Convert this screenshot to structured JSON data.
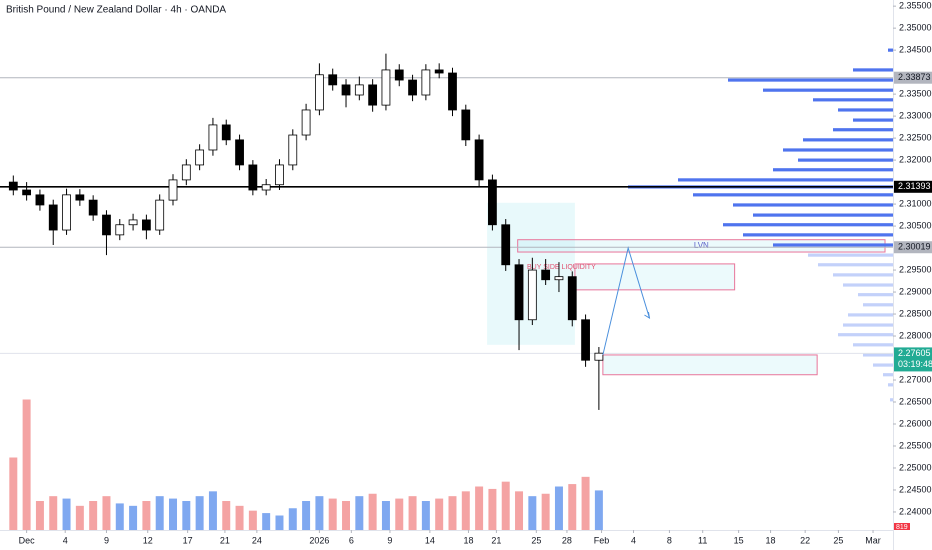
{
  "chart_data": {
    "type": "candlestick",
    "title": "British Pound / New Zealand Dollar · 4h · OANDA",
    "xlim": [
      -2,
      65.1
    ],
    "ylim": [
      2.2359,
      2.3564
    ],
    "vlim": [
      0,
      3000
    ],
    "up_color": "#ffffff",
    "down_color": "#000000",
    "up_volume_color": "#7fa8f0",
    "down_volume_color": "#f4a3a3",
    "xticks": [
      {
        "value": 0,
        "label": "Dec"
      },
      {
        "value": 2.9,
        "label": "4"
      },
      {
        "value": 6,
        "label": "9"
      },
      {
        "value": 9.1,
        "label": "12"
      },
      {
        "value": 12.1,
        "label": "17"
      },
      {
        "value": 14.9,
        "label": "21"
      },
      {
        "value": 17.3,
        "label": "24"
      },
      {
        "value": 22,
        "label": "2026"
      },
      {
        "value": 24.4,
        "label": "6"
      },
      {
        "value": 27.3,
        "label": "9"
      },
      {
        "value": 30.3,
        "label": "14"
      },
      {
        "value": 33.2,
        "label": "18"
      },
      {
        "value": 35.3,
        "label": "21"
      },
      {
        "value": 38.3,
        "label": "25"
      },
      {
        "value": 40.6,
        "label": "28"
      },
      {
        "value": 43.2,
        "label": "Feb"
      },
      {
        "value": 45.6,
        "label": "4"
      },
      {
        "value": 48.3,
        "label": "8"
      },
      {
        "value": 50.8,
        "label": "11"
      },
      {
        "value": 53.5,
        "label": "15"
      },
      {
        "value": 55.9,
        "label": "18"
      },
      {
        "value": 58.5,
        "label": "22"
      },
      {
        "value": 61,
        "label": "25"
      },
      {
        "value": 63.6,
        "label": "Mar"
      }
    ],
    "yticks": [
      {
        "value": 2.355,
        "label": "2.35500"
      },
      {
        "value": 2.35,
        "label": "2.35000"
      },
      {
        "value": 2.345,
        "label": "2.34500"
      },
      {
        "value": 2.335,
        "label": "2.33500"
      },
      {
        "value": 2.33,
        "label": "2.33000"
      },
      {
        "value": 2.325,
        "label": "2.32500"
      },
      {
        "value": 2.32,
        "label": "2.32000"
      },
      {
        "value": 2.31,
        "label": "2.31000"
      },
      {
        "value": 2.305,
        "label": "2.30500"
      },
      {
        "value": 2.295,
        "label": "2.29500"
      },
      {
        "value": 2.29,
        "label": "2.29000"
      },
      {
        "value": 2.285,
        "label": "2.28500"
      },
      {
        "value": 2.28,
        "label": "2.28000"
      },
      {
        "value": 2.27,
        "label": "2.27000"
      },
      {
        "value": 2.265,
        "label": "2.26500"
      },
      {
        "value": 2.26,
        "label": "2.26000"
      },
      {
        "value": 2.255,
        "label": "2.25500"
      },
      {
        "value": 2.25,
        "label": "2.25000"
      },
      {
        "value": 2.245,
        "label": "2.24500"
      },
      {
        "value": 2.24,
        "label": "2.24000"
      }
    ],
    "x": [
      -1,
      0,
      1,
      2,
      3,
      4,
      5,
      6,
      7,
      8,
      9,
      10,
      11,
      12,
      13,
      14,
      15,
      16,
      17,
      18,
      19,
      20,
      21,
      22,
      23,
      24,
      25,
      26,
      27,
      28,
      29,
      30,
      31,
      32,
      33,
      34,
      35,
      36,
      37,
      38,
      39,
      40,
      41,
      42,
      43
    ],
    "open": [
      2.315,
      2.3132,
      2.3121,
      2.3098,
      2.3041,
      2.3121,
      2.3109,
      2.3075,
      2.303,
      2.3053,
      2.3064,
      2.3041,
      2.3109,
      2.3155,
      2.3189,
      2.3223,
      2.328,
      2.3246,
      2.3189,
      2.3132,
      2.3144,
      2.3189,
      2.3257,
      2.3314,
      2.3394,
      2.3371,
      2.3348,
      2.3371,
      2.3325,
      2.3405,
      2.3382,
      2.3348,
      2.3405,
      2.3398,
      2.3314,
      2.3246,
      2.3155,
      2.3053,
      2.2962,
      2.2837,
      2.295,
      2.2928,
      2.2935,
      2.2837,
      2.2745
    ],
    "high": [
      2.3165,
      2.315,
      2.3133,
      2.311,
      2.3135,
      2.3134,
      2.312,
      2.3086,
      2.3066,
      2.3078,
      2.3076,
      2.3122,
      2.3168,
      2.3202,
      2.3236,
      2.3296,
      2.3292,
      2.3258,
      2.32,
      2.3157,
      2.3202,
      2.327,
      2.3328,
      2.342,
      2.3408,
      2.3384,
      2.339,
      2.3384,
      2.3442,
      2.3418,
      2.3394,
      2.3418,
      2.342,
      2.341,
      2.3326,
      2.3258,
      2.3167,
      2.3066,
      2.2975,
      2.2978,
      2.2975,
      2.2968,
      2.2947,
      2.2849,
      2.2775
    ],
    "low": [
      2.312,
      2.3108,
      2.3085,
      2.3007,
      2.303,
      2.3096,
      2.3062,
      2.2984,
      2.3018,
      2.304,
      2.302,
      2.303,
      2.3097,
      2.3143,
      2.3177,
      2.321,
      2.3234,
      2.3177,
      2.312,
      2.312,
      2.3132,
      2.3177,
      2.3245,
      2.3302,
      2.3358,
      2.332,
      2.3336,
      2.331,
      2.3313,
      2.3368,
      2.3334,
      2.3336,
      2.3386,
      2.33,
      2.3232,
      2.314,
      2.304,
      2.2948,
      2.2768,
      2.2825,
      2.2916,
      2.29,
      2.2822,
      2.273,
      2.2632
    ],
    "close": [
      2.3132,
      2.3121,
      2.3098,
      2.3041,
      2.3121,
      2.3109,
      2.3075,
      2.303,
      2.3053,
      2.3064,
      2.3041,
      2.3109,
      2.3155,
      2.3189,
      2.3223,
      2.328,
      2.3246,
      2.3189,
      2.3132,
      2.3144,
      2.3189,
      2.3257,
      2.3314,
      2.3394,
      2.3371,
      2.3348,
      2.3371,
      2.3325,
      2.3405,
      2.3382,
      2.3348,
      2.3405,
      2.3398,
      2.3314,
      2.3246,
      2.3155,
      2.3053,
      2.2962,
      2.2837,
      2.295,
      2.2928,
      2.2935,
      2.2837,
      2.2745,
      2.2761
    ],
    "volume": [
      1500,
      2700,
      600,
      700,
      650,
      500,
      600,
      700,
      550,
      500,
      600,
      700,
      650,
      600,
      700,
      800,
      600,
      500,
      400,
      350,
      300,
      450,
      600,
      700,
      650,
      600,
      700,
      750,
      600,
      650,
      700,
      600,
      650,
      700,
      800,
      900,
      850,
      1000,
      800,
      700,
      750,
      900,
      950,
      1100,
      819
    ],
    "volume_label": "819",
    "levels": [
      {
        "value": 2.33873,
        "label": "2.33873",
        "color": "#b2b5be",
        "text_color": "#131722",
        "width": 1
      },
      {
        "value": 2.31393,
        "label": "2.31393",
        "color": "#000000",
        "text_color": "#ffffff",
        "width": 1.6
      },
      {
        "value": 2.30019,
        "label": "2.30019",
        "color": "#b2b5be",
        "text_color": "#131722",
        "width": 1
      },
      {
        "value": 2.27605,
        "label": "2.27605",
        "color": "#e0e3eb",
        "text_color": "#ffffff",
        "box_color": "#22ab94",
        "width": 1,
        "countdown": "03:19:48"
      }
    ],
    "zones": [
      {
        "x": [
          34.6,
          41.2
        ],
        "y": [
          2.278,
          2.3103
        ],
        "fill": "rgba(178,235,242,0.3)"
      },
      {
        "x": [
          36.9,
          64.5
        ],
        "y": [
          2.2991,
          2.3019
        ],
        "fill": "rgba(178,235,242,0.25)",
        "border": "#e8759a",
        "label": "LVN",
        "label_color": "#5b5fc7"
      },
      {
        "x": [
          41.2,
          53.2
        ],
        "y": [
          2.2905,
          2.2964
        ],
        "fill": "rgba(178,235,242,0.25)",
        "border": "#e8759a"
      },
      {
        "x": [
          43.3,
          59.4
        ],
        "y": [
          2.2712,
          2.2757
        ],
        "fill": "rgba(178,235,242,0.25)",
        "border": "#e8759a"
      }
    ],
    "notes": [
      {
        "text": "BUY SIDE LIQUIDITY",
        "x": 37.6,
        "y": 2.2957,
        "color": "#e04f6e"
      }
    ],
    "arrow": {
      "x": [
        43.3,
        45.2,
        46.8
      ],
      "y": [
        2.2757,
        2.3,
        2.2841
      ],
      "color": "#4a8fdc"
    },
    "profiles": [
      {
        "color": "#4f74ee",
        "prices": [
          2.345,
          2.3405,
          2.3382,
          2.3359,
          2.3337,
          2.3314,
          2.3291,
          2.3269,
          2.3246,
          2.3223,
          2.32,
          2.3178,
          2.3155,
          2.3139,
          2.3121,
          2.3098,
          2.3075,
          2.3053,
          2.303,
          2.3007
        ],
        "values": [
          5,
          40,
          165,
          130,
          80,
          55,
          40,
          60,
          90,
          110,
          95,
          120,
          215,
          265,
          200,
          160,
          140,
          170,
          150,
          120
        ]
      },
      {
        "color": "#c3d1fa",
        "prices": [
          2.2984,
          2.2962,
          2.2939,
          2.2916,
          2.2894,
          2.2871,
          2.2848,
          2.2825,
          2.2803,
          2.278,
          2.2757,
          2.2734,
          2.2712,
          2.2689,
          2.2655
        ],
        "values": [
          85,
          75,
          60,
          50,
          35,
          30,
          45,
          50,
          55,
          40,
          30,
          20,
          10,
          5,
          3
        ]
      }
    ]
  }
}
